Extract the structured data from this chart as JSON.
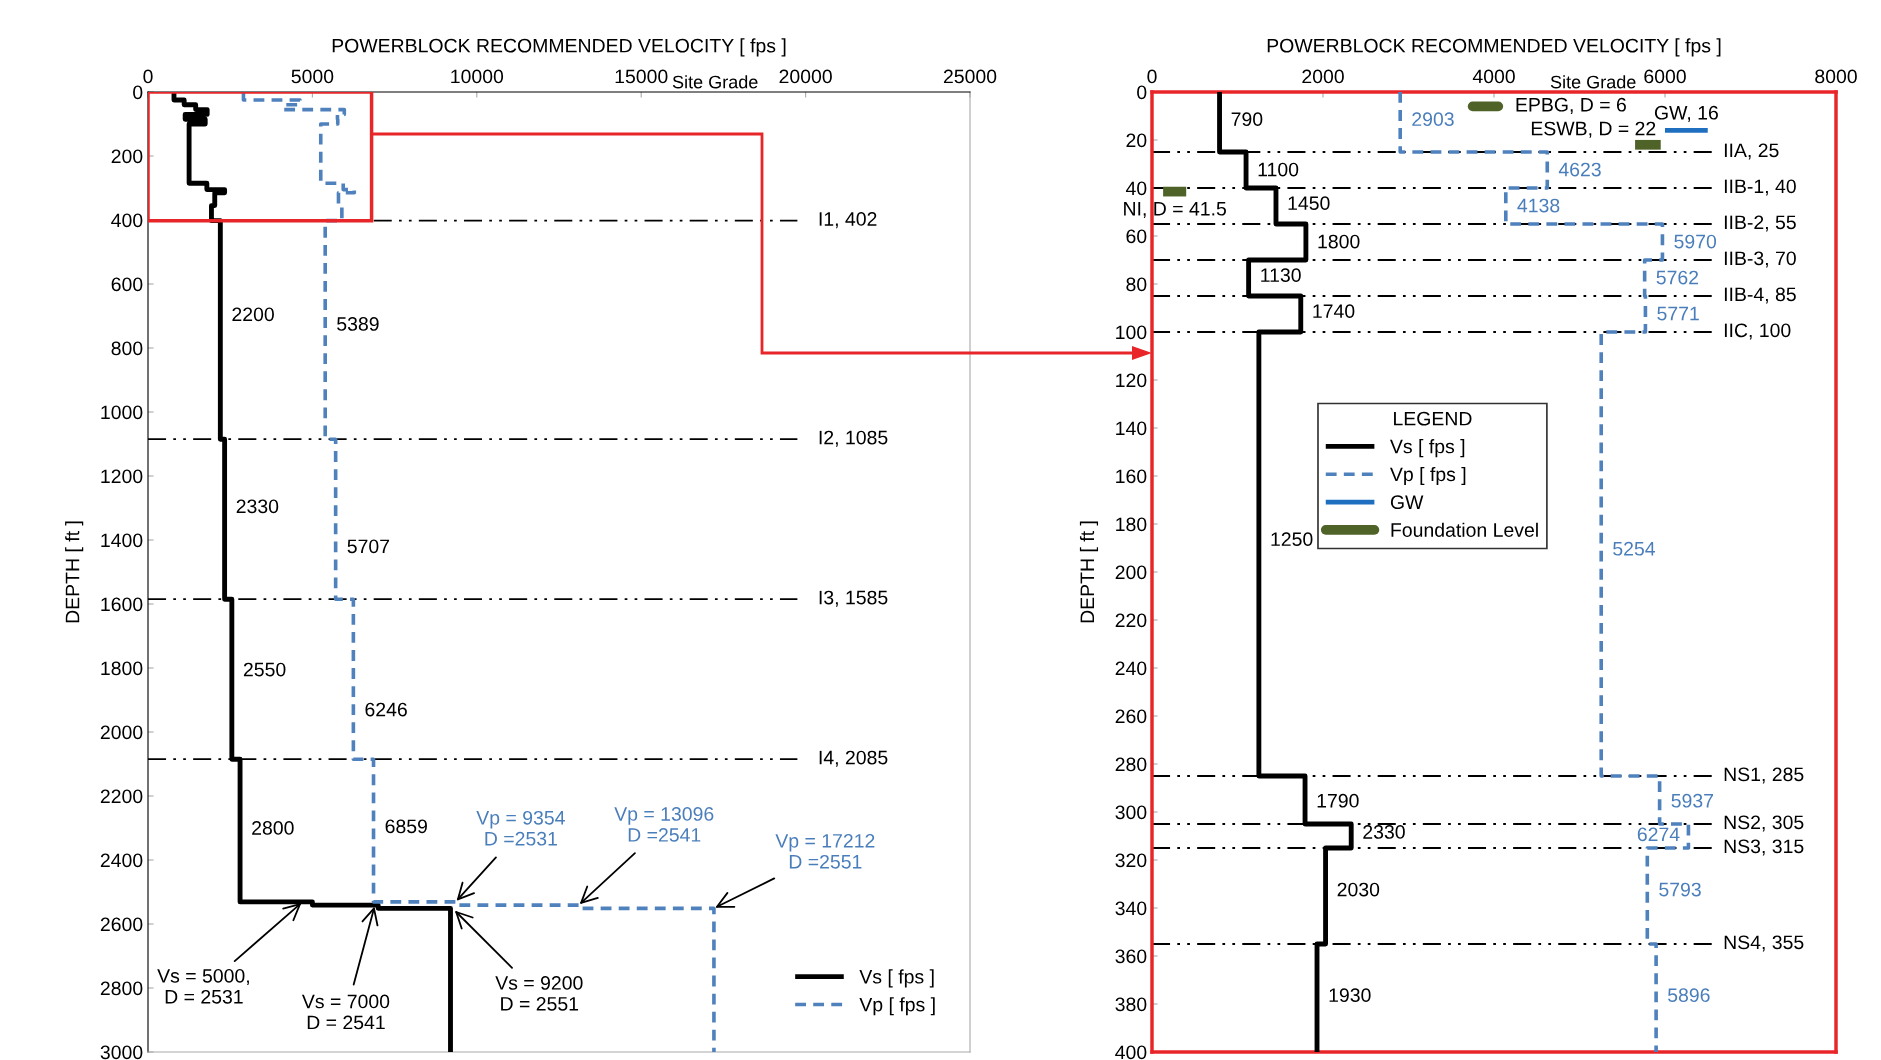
{
  "chart_data": [
    {
      "type": "line",
      "xlabel": "POWERBLOCK RECOMMENDED VELOCITY [ fps ]",
      "ylabel": "DEPTH [ ft ]",
      "xlim": [
        0,
        25000
      ],
      "xticks": [
        0,
        5000,
        10000,
        15000,
        20000,
        25000
      ],
      "ylim": [
        3000,
        0
      ],
      "yticks": [
        0,
        200,
        400,
        600,
        800,
        1000,
        1200,
        1400,
        1600,
        1800,
        2000,
        2200,
        2400,
        2600,
        2800,
        3000
      ],
      "legend": "bottom right",
      "grid": false,
      "series": [
        {
          "name": "Vs [ fps ]",
          "color": "#000000",
          "line_style": "solid",
          "x": [
            790,
            790,
            1100,
            1100,
            1450,
            1450,
            1800,
            1800,
            1130,
            1130,
            1740,
            1740,
            1250,
            1250,
            1790,
            1790,
            2330,
            2330,
            2030,
            2030,
            1930,
            1930,
            2200,
            2200,
            2330,
            2330,
            2550,
            2550,
            2800,
            2800,
            5000,
            5000,
            7000,
            7000,
            9200,
            9200
          ],
          "values": [
            0,
            25,
            25,
            40,
            40,
            55,
            55,
            70,
            70,
            85,
            85,
            100,
            100,
            285,
            285,
            305,
            305,
            315,
            315,
            355,
            355,
            402,
            402,
            1085,
            1085,
            1585,
            1585,
            2085,
            2085,
            2531,
            2531,
            2541,
            2541,
            2551,
            2551,
            3000
          ]
        },
        {
          "name": "Vp [ fps ]",
          "color": "#4f81bd",
          "line_style": "dashed",
          "x": [
            2903,
            2903,
            4623,
            4623,
            4138,
            4138,
            5970,
            5970,
            5762,
            5762,
            5771,
            5771,
            5254,
            5254,
            5937,
            5937,
            6274,
            6274,
            5793,
            5793,
            5896,
            5896,
            5389,
            5389,
            5707,
            5707,
            6246,
            6246,
            6859,
            6859,
            9354,
            9354,
            13096,
            13096,
            17212,
            17212
          ],
          "values": [
            0,
            25,
            25,
            40,
            40,
            55,
            55,
            70,
            70,
            85,
            85,
            100,
            100,
            285,
            285,
            305,
            305,
            315,
            315,
            355,
            355,
            402,
            402,
            1085,
            1085,
            1585,
            1585,
            2085,
            2085,
            2531,
            2531,
            2541,
            2541,
            2551,
            2551,
            3000
          ]
        }
      ],
      "ref_lines": [
        {
          "axis": "y",
          "value": 402,
          "label": "I1, 402",
          "line_style": "dashdot",
          "color": "#000000"
        },
        {
          "axis": "y",
          "value": 1085,
          "label": "I2, 1085",
          "line_style": "dashdot",
          "color": "#000000"
        },
        {
          "axis": "y",
          "value": 1585,
          "label": "I3, 1585",
          "line_style": "dashdot",
          "color": "#000000"
        },
        {
          "axis": "y",
          "value": 2085,
          "label": "I4, 2085",
          "line_style": "dashdot",
          "color": "#000000"
        }
      ],
      "annotations": [
        {
          "text": "2200",
          "x": 2200,
          "y": 700
        },
        {
          "text": "5389",
          "x": 5389,
          "y": 730
        },
        {
          "text": "2330",
          "x": 2330,
          "y": 1300
        },
        {
          "text": "5707",
          "x": 5707,
          "y": 1425
        },
        {
          "text": "2550",
          "x": 2550,
          "y": 1810
        },
        {
          "text": "6246",
          "x": 6246,
          "y": 1935
        },
        {
          "text": "2800",
          "x": 2800,
          "y": 2305
        },
        {
          "text": "6859",
          "x": 6859,
          "y": 2300
        },
        "Site Grade",
        {
          "text": "Vs = 5000,\nD = 2531",
          "x": 4700,
          "y": 2531
        },
        {
          "text": "Vs = 7000\nD = 2541",
          "x": 6900,
          "y": 2541
        },
        {
          "text": "Vs = 9200\nD = 2551",
          "x": 9300,
          "y": 2555
        },
        {
          "text": "Vp = 9354\nD =2531",
          "x": 9354,
          "y": 2531
        },
        {
          "text": "Vp = 13096\nD =2541",
          "x": 13096,
          "y": 2541
        },
        {
          "text": "Vp = 17212\nD =2551",
          "x": 17212,
          "y": 2551
        }
      ]
    },
    {
      "type": "line",
      "xlabel": "POWERBLOCK RECOMMENDED VELOCITY [ fps ]",
      "ylabel": "DEPTH [ ft ]",
      "xlim": [
        0,
        8000
      ],
      "xticks": [
        0,
        2000,
        4000,
        6000,
        8000
      ],
      "ylim": [
        400,
        0
      ],
      "yticks": [
        0,
        20,
        40,
        60,
        80,
        100,
        120,
        140,
        160,
        180,
        200,
        220,
        240,
        260,
        280,
        300,
        320,
        340,
        360,
        380,
        400
      ],
      "legend": "center",
      "legend_title": "LEGEND",
      "grid": false,
      "series": [
        {
          "name": "Vs [ fps ]",
          "color": "#000000",
          "line_style": "solid",
          "x": [
            790,
            790,
            1100,
            1100,
            1450,
            1450,
            1800,
            1800,
            1130,
            1130,
            1740,
            1740,
            1250,
            1250,
            1790,
            1790,
            2330,
            2330,
            2030,
            2030,
            1930,
            1930
          ],
          "values": [
            0,
            25,
            25,
            40,
            40,
            55,
            55,
            70,
            70,
            85,
            85,
            100,
            100,
            285,
            285,
            305,
            305,
            315,
            315,
            355,
            355,
            400
          ]
        },
        {
          "name": "Vp [ fps ]",
          "color": "#4f81bd",
          "line_style": "dashed",
          "x": [
            2903,
            2903,
            4623,
            4623,
            4138,
            4138,
            5970,
            5970,
            5762,
            5762,
            5771,
            5771,
            5254,
            5254,
            5937,
            5937,
            6274,
            6274,
            5793,
            5793,
            5896,
            5896
          ],
          "values": [
            0,
            25,
            25,
            40,
            40,
            55,
            55,
            70,
            70,
            85,
            85,
            100,
            100,
            285,
            285,
            305,
            305,
            315,
            315,
            355,
            355,
            400
          ]
        },
        {
          "name": "GW",
          "color": "#1f6fc0",
          "line_style": "solid",
          "x": [
            6000,
            6500
          ],
          "values": [
            16,
            16
          ]
        },
        {
          "name": "Foundation Level",
          "color": "#4f6228",
          "line_style": "solid",
          "x": [
            3750,
            4050
          ],
          "values": [
            6,
            6
          ]
        },
        {
          "color": "#4f6228",
          "line_style": "solid",
          "x": [
            5650,
            5950
          ],
          "values": [
            22,
            22
          ]
        },
        {
          "color": "#4f6228",
          "line_style": "solid",
          "x": [
            130,
            400
          ],
          "values": [
            41.5,
            41.5
          ]
        }
      ],
      "ref_lines": [
        {
          "axis": "y",
          "value": 25,
          "label": "IIA, 25",
          "line_style": "dashdot",
          "color": "#000000"
        },
        {
          "axis": "y",
          "value": 40,
          "label": "IIB-1, 40",
          "line_style": "dashdot",
          "color": "#000000"
        },
        {
          "axis": "y",
          "value": 55,
          "label": "IIB-2, 55",
          "line_style": "dashdot",
          "color": "#000000"
        },
        {
          "axis": "y",
          "value": 70,
          "label": "IIB-3, 70",
          "line_style": "dashdot",
          "color": "#000000"
        },
        {
          "axis": "y",
          "value": 85,
          "label": "IIB-4, 85",
          "line_style": "dashdot",
          "color": "#000000"
        },
        {
          "axis": "y",
          "value": 100,
          "label": "IIC, 100",
          "line_style": "dashdot",
          "color": "#000000"
        },
        {
          "axis": "y",
          "value": 285,
          "label": "NS1, 285",
          "line_style": "dashdot",
          "color": "#000000"
        },
        {
          "axis": "y",
          "value": 305,
          "label": "NS2, 305",
          "line_style": "dashdot",
          "color": "#000000"
        },
        {
          "axis": "y",
          "value": 315,
          "label": "NS3, 315",
          "line_style": "dashdot",
          "color": "#000000"
        },
        {
          "axis": "y",
          "value": 355,
          "label": "NS4, 355",
          "line_style": "dashdot",
          "color": "#000000"
        }
      ],
      "annotations": [
        "Site Grade",
        {
          "text": "790",
          "x": 790,
          "y": 12
        },
        {
          "text": "2903",
          "x": 2903,
          "y": 12
        },
        {
          "text": "1100",
          "x": 1100,
          "y": 33
        },
        {
          "text": "4623",
          "x": 4623,
          "y": 33
        },
        {
          "text": "1450",
          "x": 1450,
          "y": 47
        },
        {
          "text": "4138",
          "x": 4138,
          "y": 48
        },
        {
          "text": "1800",
          "x": 1800,
          "y": 63
        },
        {
          "text": "5970",
          "x": 5970,
          "y": 63
        },
        {
          "text": "1130",
          "x": 1130,
          "y": 77
        },
        {
          "text": "5762",
          "x": 5762,
          "y": 78
        },
        {
          "text": "1740",
          "x": 1740,
          "y": 92
        },
        {
          "text": "5771",
          "x": 5771,
          "y": 93
        },
        {
          "text": "1250",
          "x": 1250,
          "y": 187
        },
        {
          "text": "5254",
          "x": 5254,
          "y": 191
        },
        {
          "text": "1790",
          "x": 1790,
          "y": 296
        },
        {
          "text": "5937",
          "x": 5937,
          "y": 296
        },
        {
          "text": "2330",
          "x": 2330,
          "y": 309
        },
        {
          "text": "6274",
          "x": 6274,
          "y": 310
        },
        {
          "text": "2030",
          "x": 2030,
          "y": 333
        },
        {
          "text": "5793",
          "x": 5793,
          "y": 333
        },
        {
          "text": "1930",
          "x": 1930,
          "y": 377
        },
        {
          "text": "5896",
          "x": 5896,
          "y": 377
        },
        {
          "text": "EPBG, D = 6",
          "x": 4050,
          "y": 6
        },
        {
          "text": "ESWB, D = 22",
          "x": 5800,
          "y": 22
        },
        {
          "text": "GW, 16",
          "x": 6250,
          "y": 16
        },
        {
          "text": "NI, D = 41.5",
          "x": 265,
          "y": 41.5
        }
      ]
    }
  ]
}
